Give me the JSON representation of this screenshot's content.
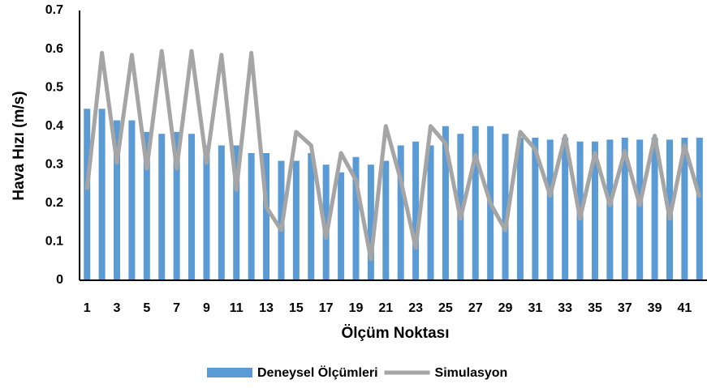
{
  "chart_data": {
    "type": "bar",
    "xlabel": "Ölçüm Noktası",
    "ylabel": "Hava Hızı (m/s)",
    "categories": [
      1,
      null,
      3,
      null,
      5,
      null,
      7,
      null,
      9,
      null,
      11,
      null,
      13,
      null,
      15,
      null,
      17,
      null,
      19,
      null,
      21,
      null,
      23,
      null,
      25,
      null,
      27,
      null,
      29,
      null,
      31,
      null,
      33,
      null,
      35,
      null,
      37,
      null,
      39,
      null,
      41,
      null
    ],
    "series": [
      {
        "name": "Deneysel Ölçümleri",
        "type": "bar",
        "color": "#5b9bd5",
        "values": [
          0.445,
          0.445,
          0.415,
          0.415,
          0.385,
          0.38,
          0.385,
          0.38,
          0.35,
          0.35,
          0.35,
          0.33,
          0.33,
          0.31,
          0.31,
          0.33,
          0.3,
          0.28,
          0.32,
          0.3,
          0.31,
          0.35,
          0.36,
          0.35,
          0.4,
          0.38,
          0.4,
          0.4,
          0.38,
          0.37,
          0.37,
          0.365,
          0.37,
          0.36,
          0.36,
          0.365,
          0.37,
          0.365,
          0.37,
          0.365,
          0.37,
          0.37
        ]
      },
      {
        "name": "Simulasyon",
        "type": "line",
        "color": "#a5a5a5",
        "values": [
          0.235,
          0.59,
          0.305,
          0.585,
          0.29,
          0.595,
          0.29,
          0.595,
          0.305,
          0.585,
          0.235,
          0.59,
          0.19,
          0.13,
          0.385,
          0.35,
          0.11,
          0.33,
          0.26,
          0.055,
          0.4,
          0.26,
          0.085,
          0.4,
          0.355,
          0.16,
          0.325,
          0.2,
          0.13,
          0.385,
          0.34,
          0.22,
          0.375,
          0.16,
          0.33,
          0.195,
          0.335,
          0.195,
          0.375,
          0.16,
          0.35,
          0.215
        ]
      }
    ],
    "ylim": [
      0,
      0.7
    ],
    "yticks": [
      0,
      0.1,
      0.2,
      0.3,
      0.4,
      0.5,
      0.6,
      0.7
    ],
    "grid": false,
    "legend": "bottom"
  }
}
